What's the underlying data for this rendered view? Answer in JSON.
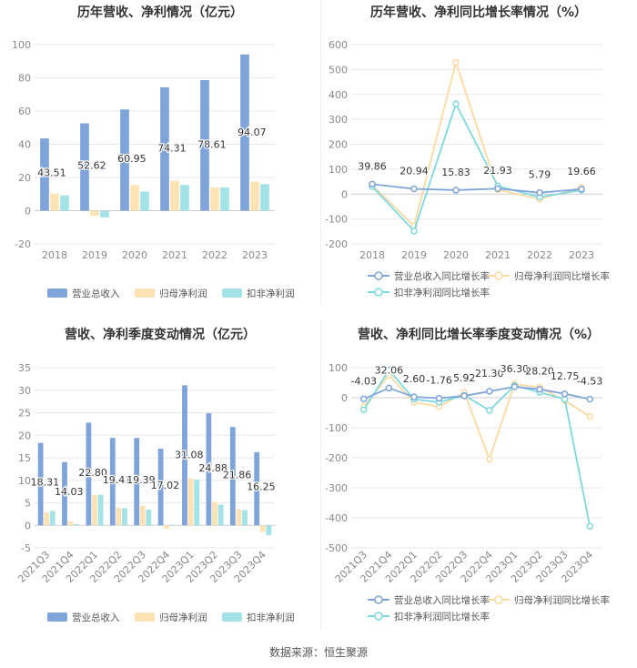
{
  "colors": {
    "revenue": "#7fa4d9",
    "net_profit": "#fde3b4",
    "deducted_profit": "#a3e2e6",
    "rev_line": "#7fa4d9",
    "np_line": "#fcd9a0",
    "dp_line": "#7fd8df"
  },
  "footer": {
    "source": "数据来源：恒生聚源"
  },
  "chart_data": [
    {
      "id": "annual-bar",
      "type": "bar",
      "title": "历年营收、净利情况（亿元）",
      "categories": [
        "2018",
        "2019",
        "2020",
        "2021",
        "2022",
        "2023"
      ],
      "series": [
        {
          "name": "营业总收入",
          "color_key": "revenue",
          "values": [
            43.51,
            52.62,
            60.95,
            74.31,
            78.61,
            94.07
          ],
          "labels": [
            "43.51",
            "52.62",
            "60.95",
            "74.31",
            "78.61",
            "94.07"
          ]
        },
        {
          "name": "归母净利润",
          "color_key": "net_profit",
          "values": [
            10.2,
            -3.0,
            15.5,
            18.0,
            14.0,
            17.5
          ]
        },
        {
          "name": "扣非净利润",
          "color_key": "deducted_profit",
          "values": [
            9.2,
            -4.0,
            11.5,
            15.5,
            14.0,
            16.0
          ]
        }
      ],
      "yticks": [
        "100",
        "80",
        "60",
        "40",
        "20",
        "0",
        "-20"
      ],
      "ylim": [
        -20,
        100
      ]
    },
    {
      "id": "annual-line",
      "type": "line",
      "title": "历年营收、净利同比增长率情况（%）",
      "categories": [
        "2018",
        "2019",
        "2020",
        "2021",
        "2022",
        "2023"
      ],
      "series": [
        {
          "name": "营业总收入同比增长率",
          "color_key": "rev_line",
          "values": [
            39.86,
            20.94,
            15.83,
            21.93,
            5.79,
            19.66
          ],
          "labels": [
            "39.86",
            "20.94",
            "15.83",
            "21.93",
            "5.79",
            "19.66"
          ]
        },
        {
          "name": "归母净利润同比增长率",
          "color_key": "np_line",
          "values": [
            35,
            -128,
            528,
            18,
            -20,
            26
          ]
        },
        {
          "name": "扣非净利润同比增长率",
          "color_key": "dp_line",
          "values": [
            30,
            -148,
            362,
            32,
            -12,
            16
          ]
        }
      ],
      "yticks": [
        "600",
        "500",
        "400",
        "300",
        "200",
        "100",
        "0",
        "-100",
        "-200"
      ],
      "ylim": [
        -200,
        600
      ]
    },
    {
      "id": "quarter-bar",
      "type": "bar",
      "title": "营收、净利季度变动情况（亿元）",
      "categories": [
        "2021Q3",
        "2021Q4",
        "2022Q1",
        "2022Q2",
        "2022Q3",
        "2022Q4",
        "2023Q1",
        "2023Q2",
        "2023Q3",
        "2023Q4"
      ],
      "series": [
        {
          "name": "营业总收入",
          "color_key": "revenue",
          "values": [
            18.31,
            14.03,
            22.8,
            19.41,
            19.39,
            17.02,
            31.08,
            24.88,
            21.86,
            16.25
          ],
          "labels": [
            "18.31",
            "14.03",
            "22.80",
            "19.41",
            "19.39",
            "17.02",
            "31.08",
            "24.88",
            "21.86",
            "16.25"
          ]
        },
        {
          "name": "归母净利润",
          "color_key": "net_profit",
          "values": [
            2.9,
            0.9,
            6.7,
            3.9,
            4.3,
            -0.8,
            10.4,
            5.2,
            3.6,
            -1.5
          ]
        },
        {
          "name": "扣非净利润",
          "color_key": "deducted_profit",
          "values": [
            3.2,
            0.3,
            6.8,
            3.8,
            3.5,
            0.1,
            10.1,
            4.6,
            3.4,
            -2.2
          ]
        }
      ],
      "yticks": [
        "35",
        "30",
        "25",
        "20",
        "15",
        "10",
        "5",
        "0",
        "-5"
      ],
      "ylim": [
        -5,
        35
      ]
    },
    {
      "id": "quarter-line",
      "type": "line",
      "title": "营收、净利同比增长率季度变动情况（%）",
      "categories": [
        "2021Q3",
        "2021Q4",
        "2022Q1",
        "2022Q2",
        "2022Q3",
        "2022Q4",
        "2023Q1",
        "2023Q2",
        "2023Q3",
        "2023Q4"
      ],
      "series": [
        {
          "name": "营业总收入同比增长率",
          "color_key": "rev_line",
          "values": [
            -4.03,
            32.06,
            2.6,
            -1.76,
            5.92,
            21.3,
            36.3,
            28.2,
            12.75,
            -4.53
          ],
          "labels": [
            "-4.03",
            "32.06",
            "2.60",
            "-1.76",
            "5.92",
            "21.30",
            "36.30",
            "28.20",
            "12.75",
            "-4.53"
          ]
        },
        {
          "name": "归母净利润同比增长率",
          "color_key": "np_line",
          "values": [
            -30,
            75,
            -15,
            -30,
            18,
            -205,
            45,
            35,
            -10,
            -62
          ]
        },
        {
          "name": "扣非净利润同比增长率",
          "color_key": "dp_line",
          "values": [
            -40,
            92,
            -5,
            -15,
            8,
            -42,
            40,
            18,
            -5,
            -428
          ]
        }
      ],
      "yticks": [
        "100",
        "0",
        "-100",
        "-200",
        "-300",
        "-400",
        "-500"
      ],
      "ylim": [
        -500,
        100
      ]
    }
  ]
}
